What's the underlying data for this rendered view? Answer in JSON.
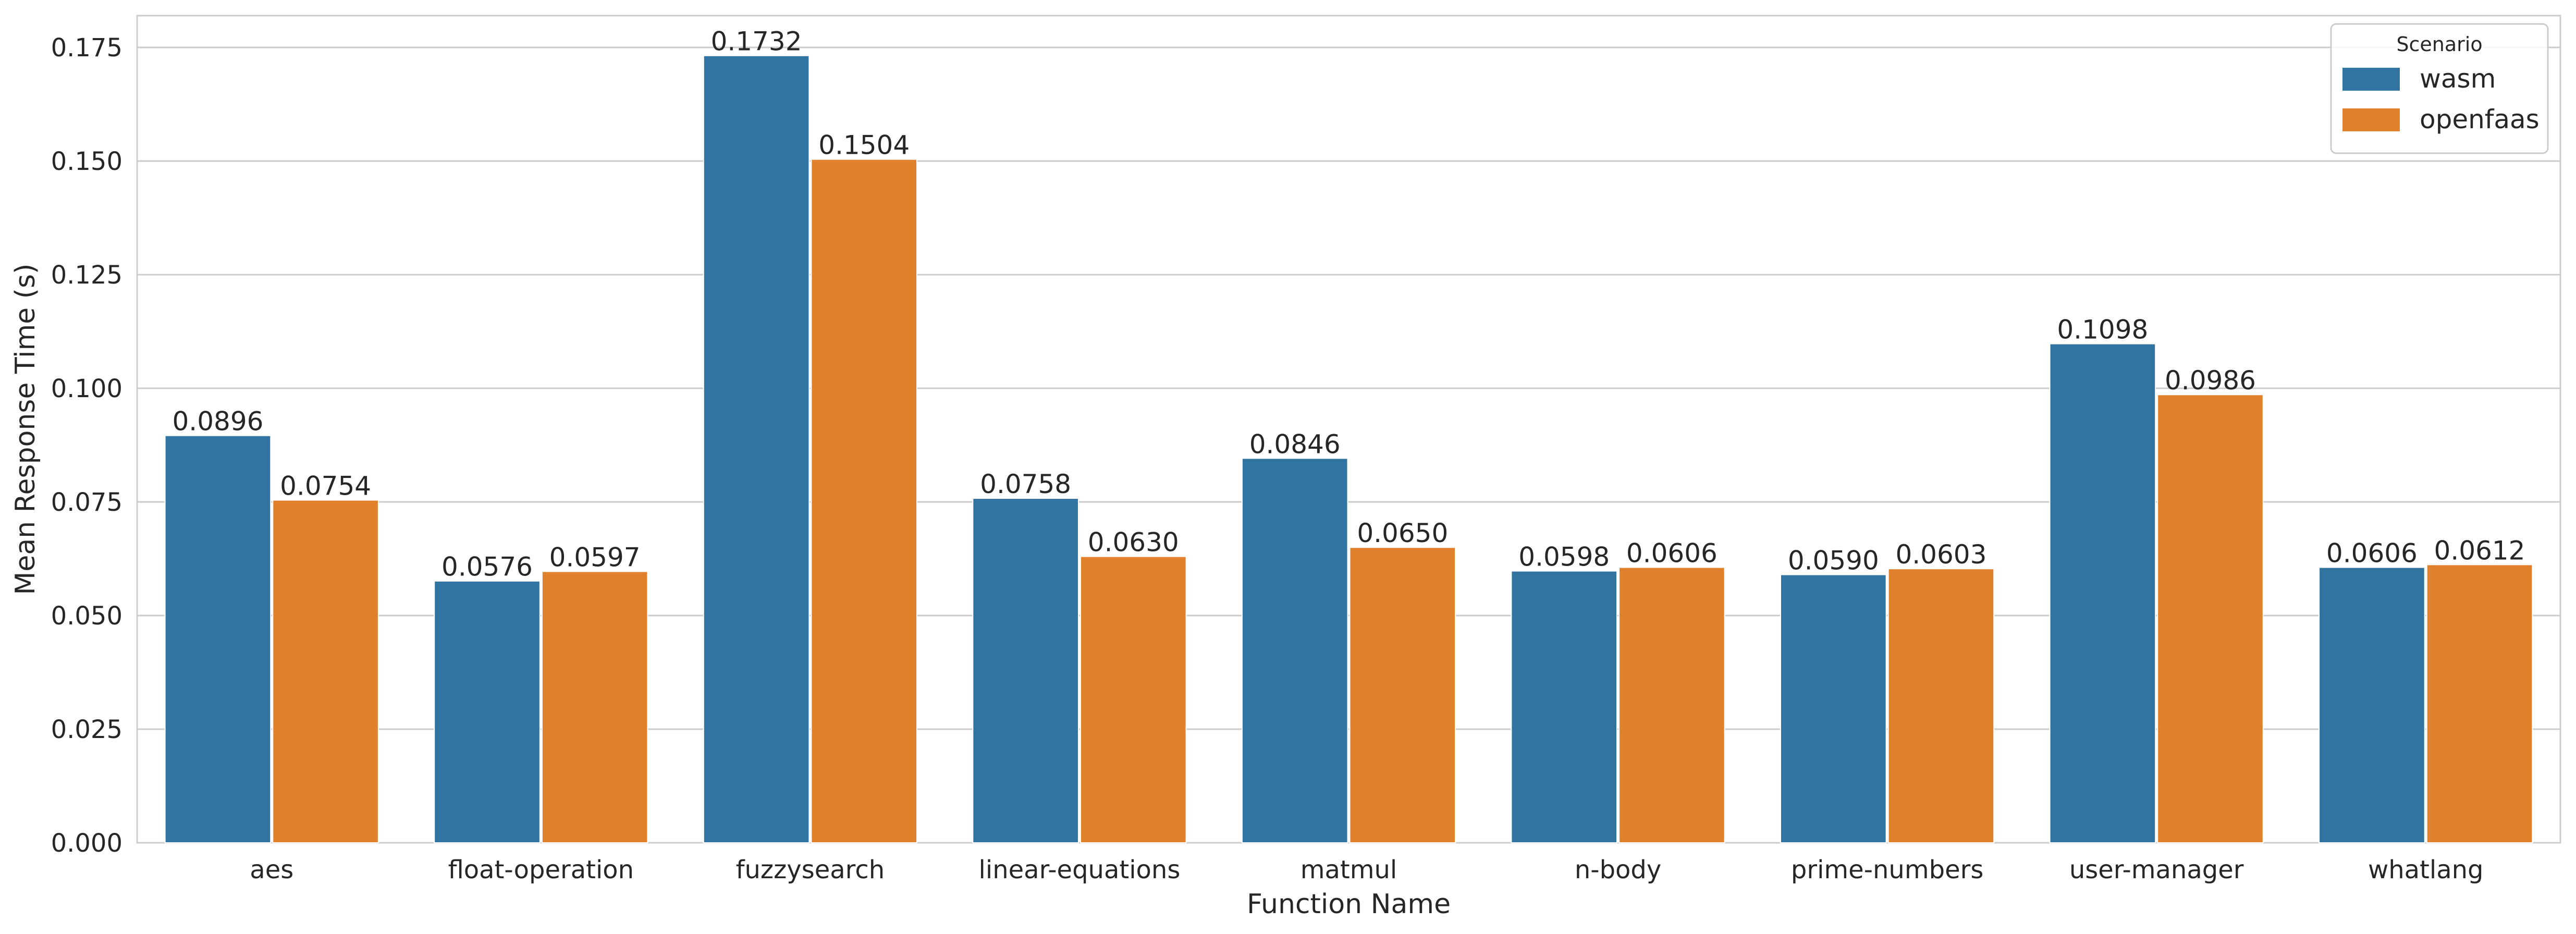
{
  "chart_data": {
    "type": "bar",
    "xlabel": "Function Name",
    "ylabel": "Mean Response Time (s)",
    "ylim": [
      0,
      0.182
    ],
    "yticks": [
      "0.000",
      "0.025",
      "0.050",
      "0.075",
      "0.100",
      "0.125",
      "0.150",
      "0.175"
    ],
    "ytick_values": [
      0,
      0.025,
      0.05,
      0.075,
      0.1,
      0.125,
      0.15,
      0.175
    ],
    "grid": true,
    "legend": {
      "title": "Scenario",
      "placement": "top-right"
    },
    "categories": [
      "aes",
      "float-operation",
      "fuzzysearch",
      "linear-equations",
      "matmul",
      "n-body",
      "prime-numbers",
      "user-manager",
      "whatlang"
    ],
    "series": [
      {
        "name": "wasm",
        "color": "#3274a1",
        "values": [
          0.0896,
          0.0576,
          0.1732,
          0.0758,
          0.0846,
          0.0598,
          0.059,
          0.1098,
          0.0606
        ],
        "labels": [
          "0.0896",
          "0.0576",
          "0.1732",
          "0.0758",
          "0.0846",
          "0.0598",
          "0.0590",
          "0.1098",
          "0.0606"
        ]
      },
      {
        "name": "openfaas",
        "color": "#e1812c",
        "values": [
          0.0754,
          0.0597,
          0.1504,
          0.063,
          0.065,
          0.0606,
          0.0603,
          0.0986,
          0.0612
        ],
        "labels": [
          "0.0754",
          "0.0597",
          "0.1504",
          "0.0630",
          "0.0650",
          "0.0606",
          "0.0603",
          "0.0986",
          "0.0612"
        ]
      }
    ]
  }
}
